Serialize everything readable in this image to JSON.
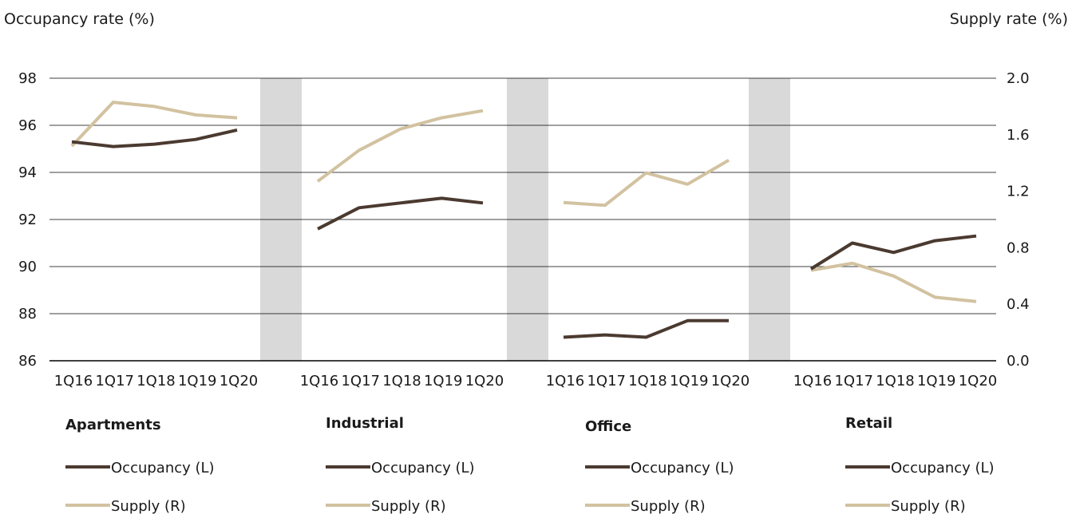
{
  "chart_data": {
    "type": "line",
    "title": "",
    "ylabel_left": "Occupancy rate (%)",
    "ylabel_right": "Supply rate (%)",
    "ylim_left": [
      86,
      98
    ],
    "ylim_right": [
      0.0,
      2.0
    ],
    "left_ticks": [
      "98",
      "96",
      "94",
      "92",
      "90",
      "88",
      "86"
    ],
    "right_ticks": [
      "2.0",
      "1.6",
      "1.2",
      "0.8",
      "0.4",
      "0.0"
    ],
    "x": [
      "1Q16",
      "1Q17",
      "1Q18",
      "1Q19",
      "1Q20"
    ],
    "grid": true,
    "colors": {
      "occupancy": "#4b3a30",
      "supply": "#d2c2a0",
      "separator": "#d9d9d9"
    },
    "legend_labels": {
      "occupancy": "Occupancy (L)",
      "supply": "Supply (R)"
    },
    "panels": [
      {
        "name": "Apartments",
        "series": [
          {
            "name": "Occupancy (L)",
            "axis": "left",
            "values": [
              95.3,
              95.1,
              95.2,
              95.4,
              95.8
            ]
          },
          {
            "name": "Supply (R)",
            "axis": "right",
            "values": [
              1.52,
              1.83,
              1.8,
              1.74,
              1.72
            ]
          }
        ]
      },
      {
        "name": "Industrial",
        "series": [
          {
            "name": "Occupancy (L)",
            "axis": "left",
            "values": [
              91.6,
              92.5,
              92.7,
              92.9,
              92.7
            ]
          },
          {
            "name": "Supply (R)",
            "axis": "right",
            "values": [
              1.27,
              1.49,
              1.64,
              1.72,
              1.77
            ]
          }
        ]
      },
      {
        "name": "Office",
        "series": [
          {
            "name": "Occupancy (L)",
            "axis": "left",
            "values": [
              87.0,
              87.1,
              87.0,
              87.7,
              87.7
            ]
          },
          {
            "name": "Supply (R)",
            "axis": "right",
            "values": [
              1.12,
              1.1,
              1.33,
              1.25,
              1.42
            ]
          }
        ]
      },
      {
        "name": "Retail",
        "series": [
          {
            "name": "Occupancy (L)",
            "axis": "left",
            "values": [
              89.9,
              91.0,
              90.6,
              91.1,
              91.3
            ]
          },
          {
            "name": "Supply (R)",
            "axis": "right",
            "values": [
              0.64,
              0.69,
              0.6,
              0.45,
              0.42
            ]
          }
        ]
      }
    ]
  }
}
